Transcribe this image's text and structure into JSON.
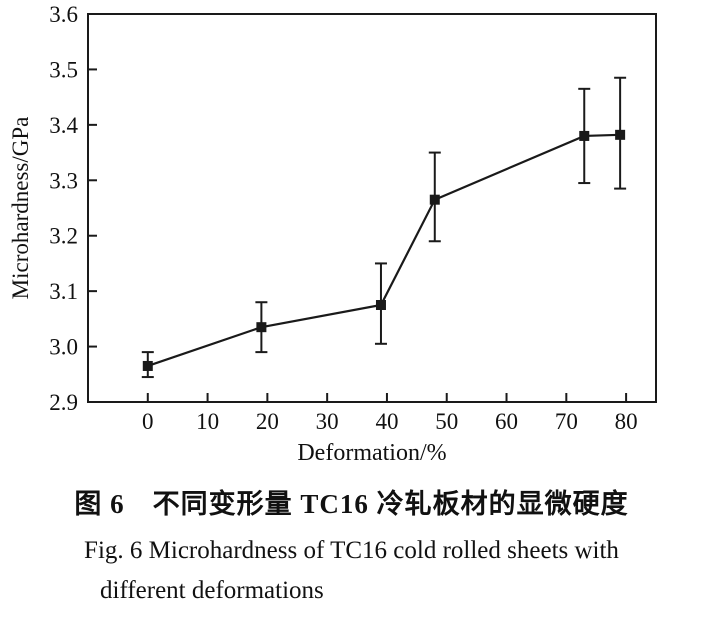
{
  "chart_data": {
    "type": "line",
    "title": "",
    "xlabel": "Deformation/%",
    "ylabel": "Microhardness/GPa",
    "xlim": [
      -10,
      85
    ],
    "ylim": [
      2.9,
      3.6
    ],
    "xticks": [
      0,
      10,
      20,
      30,
      40,
      50,
      60,
      70,
      80
    ],
    "yticks": [
      2.9,
      3.0,
      3.1,
      3.2,
      3.3,
      3.4,
      3.5,
      3.6
    ],
    "grid": false,
    "legend": "none",
    "marker": "filled-square",
    "line_color": "#1a1a1a",
    "series": [
      {
        "name": "Microhardness",
        "x": [
          0,
          19,
          39,
          48,
          73,
          79
        ],
        "y": [
          2.965,
          3.035,
          3.075,
          3.265,
          3.38,
          3.382
        ],
        "y_err_low": [
          2.945,
          2.99,
          3.005,
          3.19,
          3.295,
          3.285
        ],
        "y_err_high": [
          2.99,
          3.08,
          3.15,
          3.35,
          3.465,
          3.485
        ]
      }
    ]
  },
  "caption": {
    "zh": "图 6　不同变形量 TC16 冷轧板材的显微硬度",
    "en_line1": "Fig. 6   Microhardness of TC16 cold rolled sheets with",
    "en_line2": "different deformations"
  }
}
